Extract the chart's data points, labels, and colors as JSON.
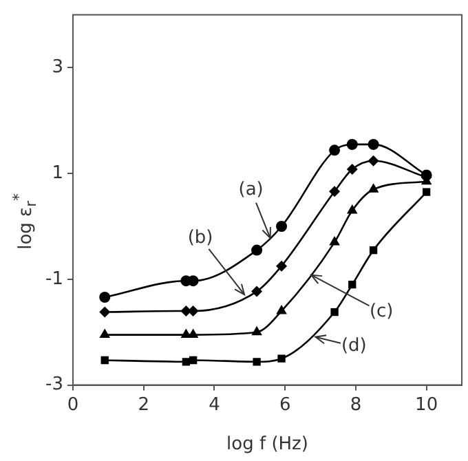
{
  "chart_data": {
    "type": "line",
    "xlabel": "log f (Hz)",
    "ylabel": "log ε$_{r}$$^{*}$",
    "xlim": [
      0,
      11
    ],
    "ylim": [
      -3,
      4
    ],
    "xticks": [
      0,
      2,
      4,
      6,
      8,
      10
    ],
    "yticks": [
      -3,
      -1,
      1,
      3
    ],
    "grid": false,
    "legend": false,
    "line_style": "solid",
    "x": [
      0.9,
      3.2,
      3.4,
      5.2,
      5.9,
      7.4,
      7.9,
      8.5,
      10
    ],
    "series": [
      {
        "color": "#000000",
        "marker": "circle",
        "values": [
          -1.34,
          -1.03,
          -1.03,
          -0.45,
          0.0,
          1.44,
          1.55,
          1.55,
          0.97
        ]
      },
      {
        "color": "#000000",
        "marker": "diamond",
        "values": [
          -1.62,
          -1.6,
          -1.6,
          -1.23,
          -0.75,
          0.66,
          1.08,
          1.24,
          0.93
        ]
      },
      {
        "color": "#000000",
        "marker": "triangle",
        "values": [
          -2.05,
          -2.05,
          -2.05,
          -2.0,
          -1.6,
          -0.3,
          0.3,
          0.7,
          0.85
        ]
      },
      {
        "color": "#000000",
        "marker": "square",
        "values": [
          -2.53,
          -2.56,
          -2.53,
          -2.56,
          -2.5,
          -1.62,
          -1.1,
          -0.45,
          0.65
        ]
      }
    ],
    "annotations": [
      {
        "text": "(a)",
        "x": 5.58,
        "y": -0.22
      },
      {
        "text": "(b)",
        "x": 4.85,
        "y": -1.29
      },
      {
        "text": "(c)",
        "x": 6.74,
        "y": -0.92
      },
      {
        "text": "(d)",
        "x": 6.86,
        "y": -2.09
      }
    ]
  }
}
